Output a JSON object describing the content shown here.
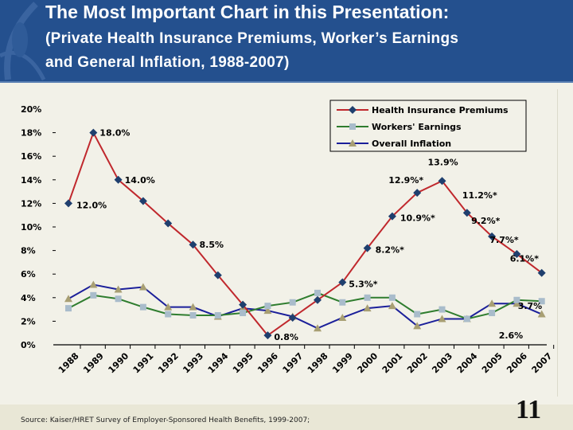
{
  "header": {
    "title_line1": "The Most Important Chart in this Presentation:",
    "title_line2": "(Private Health Insurance Premiums, Worker’s Earnings",
    "title_line3": "and General Inflation, 1988-2007)"
  },
  "footer": {
    "source": "Source:  Kaiser/HRET Survey of Employer-Sponsored Health Benefits, 1999-2007;",
    "page_number": "11"
  },
  "colors": {
    "header_bg": "#24508e",
    "health": "#c0282d",
    "health_marker": "#1f3f6e",
    "workers": "#2f7d2f",
    "workers_marker": "#a9bccb",
    "inflation": "#1b1f9a",
    "inflation_marker": "#a89f73"
  },
  "chart_data": {
    "type": "line",
    "x": [
      "1988",
      "1989",
      "1990",
      "1991",
      "1992",
      "1993",
      "1994",
      "1995",
      "1996",
      "1997",
      "1998",
      "1999",
      "2000",
      "2001",
      "2002",
      "2003",
      "2004",
      "2005",
      "2006",
      "2007"
    ],
    "ylim": [
      0,
      20
    ],
    "yticks": [
      "0%",
      "2%",
      "4%",
      "6%",
      "8%",
      "10%",
      "12%",
      "14%",
      "16%",
      "18%",
      "20%"
    ],
    "grid": false,
    "legend": "top-right",
    "series": [
      {
        "name": "Health Insurance Premiums",
        "marker": "diamond",
        "values": [
          12.0,
          18.0,
          14.0,
          12.2,
          10.3,
          8.5,
          5.9,
          3.4,
          0.8,
          2.3,
          3.8,
          5.3,
          8.2,
          10.9,
          12.9,
          13.9,
          11.2,
          9.2,
          7.7,
          6.1
        ]
      },
      {
        "name": "Workers' Earnings",
        "marker": "square",
        "values": [
          3.1,
          4.2,
          3.9,
          3.2,
          2.6,
          2.5,
          2.5,
          2.7,
          3.3,
          3.6,
          4.4,
          3.6,
          4.0,
          4.0,
          2.6,
          3.0,
          2.2,
          2.7,
          3.8,
          3.7
        ]
      },
      {
        "name": "Overall Inflation",
        "marker": "triangle",
        "values": [
          3.9,
          5.1,
          4.7,
          4.9,
          3.2,
          3.2,
          2.4,
          3.1,
          2.9,
          2.4,
          1.4,
          2.3,
          3.1,
          3.3,
          1.6,
          2.2,
          2.2,
          3.5,
          3.5,
          2.6
        ]
      }
    ],
    "annotations": [
      {
        "year": "1988",
        "text": "12.0%"
      },
      {
        "year": "1989",
        "text": "18.0%"
      },
      {
        "year": "1990",
        "text": "14.0%"
      },
      {
        "year": "1993",
        "text": "8.5%"
      },
      {
        "year": "1996",
        "text": "0.8%"
      },
      {
        "year": "1999",
        "text": "5.3%*"
      },
      {
        "year": "2000",
        "text": "8.2%*"
      },
      {
        "year": "2001",
        "text": "10.9%*"
      },
      {
        "year": "2002",
        "text": "12.9%*"
      },
      {
        "year": "2003",
        "text": "13.9%"
      },
      {
        "year": "2004",
        "text": "11.2%*"
      },
      {
        "year": "2005",
        "text": "9.2%*"
      },
      {
        "year": "2006",
        "text": "7.7%*"
      },
      {
        "year": "2007",
        "text": "6.1%*"
      },
      {
        "year": "2007",
        "text": "3.7%"
      },
      {
        "year": "2007",
        "text": "2.6%"
      }
    ]
  }
}
